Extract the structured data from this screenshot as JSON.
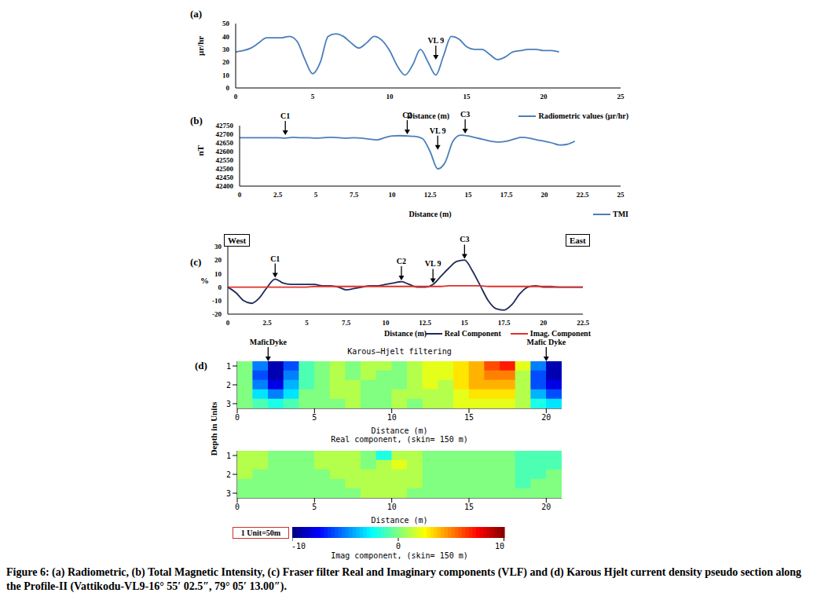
{
  "chart_data": [
    {
      "type": "line",
      "panel": "(a)",
      "xlabel": "Distance (m)",
      "ylabel": "μr/hr",
      "legend": "lower right",
      "xlim": [
        0,
        25
      ],
      "xticks": [
        0,
        5,
        10,
        15,
        20,
        25
      ],
      "ylim": [
        0,
        50
      ],
      "yticks": [
        0,
        10,
        20,
        30,
        40,
        50
      ],
      "x": [
        0,
        0.5,
        1,
        1.5,
        2,
        2.5,
        3,
        3.5,
        4,
        4.5,
        5,
        5.5,
        6,
        6.5,
        7,
        7.5,
        8,
        8.5,
        9,
        9.5,
        10,
        10.5,
        11,
        11.5,
        12,
        12.5,
        13,
        13.5,
        14,
        14.5,
        15,
        15.5,
        16,
        16.5,
        17,
        17.5,
        18,
        18.5,
        19,
        19.5,
        20,
        20.5,
        21
      ],
      "series": [
        {
          "name": "Radiometric values (μr/hr)",
          "color": "#4a7ebb",
          "values": [
            28,
            29,
            31,
            35,
            39,
            39,
            39,
            40,
            36,
            22,
            11,
            20,
            40,
            42,
            40,
            35,
            31,
            35,
            40,
            37,
            29,
            17,
            10,
            18,
            30,
            20,
            10,
            25,
            40,
            38,
            32,
            30,
            30,
            26,
            22,
            24,
            28,
            29,
            30,
            30,
            29,
            29,
            28
          ]
        }
      ],
      "annotations": [
        {
          "text": "VL 9",
          "x": 13,
          "y": 22
        }
      ]
    },
    {
      "type": "line",
      "panel": "(b)",
      "xlabel": "Distance (m)",
      "ylabel": "nT",
      "legend": "lower right",
      "xlim": [
        0,
        25
      ],
      "xticks": [
        0,
        2.5,
        5,
        7.5,
        10,
        12.5,
        15,
        17.5,
        20,
        22.5,
        25
      ],
      "ylim": [
        42400,
        42750
      ],
      "yticks": [
        42400,
        42450,
        42500,
        42550,
        42600,
        42650,
        42700,
        42750
      ],
      "x": [
        0,
        0.5,
        1,
        1.5,
        2,
        2.5,
        3,
        3.5,
        4,
        4.5,
        5,
        5.5,
        6,
        6.5,
        7,
        7.5,
        8,
        8.5,
        9,
        9.5,
        10,
        10.5,
        11,
        11.5,
        12,
        12.5,
        13,
        13.5,
        14,
        14.5,
        15,
        15.5,
        16,
        16.5,
        17,
        17.5,
        18,
        18.5,
        19,
        19.5,
        20,
        20.5,
        21,
        21.5,
        22
      ],
      "series": [
        {
          "name": "TMI",
          "color": "#4a7ebb",
          "values": [
            42680,
            42680,
            42680,
            42680,
            42680,
            42680,
            42678,
            42682,
            42680,
            42680,
            42678,
            42680,
            42682,
            42680,
            42678,
            42680,
            42678,
            42672,
            42668,
            42680,
            42690,
            42692,
            42690,
            42688,
            42675,
            42600,
            42500,
            42540,
            42660,
            42695,
            42690,
            42680,
            42670,
            42660,
            42655,
            42660,
            42672,
            42682,
            42678,
            42668,
            42660,
            42650,
            42638,
            42642,
            42660
          ]
        }
      ],
      "annotations": [
        {
          "text": "C1",
          "x": 3,
          "y": 42695
        },
        {
          "text": "C2",
          "x": 11,
          "y": 42700
        },
        {
          "text": "VL 9",
          "x": 13,
          "y": 42610
        },
        {
          "text": "C3",
          "x": 14.8,
          "y": 42705
        }
      ]
    },
    {
      "type": "line",
      "panel": "(c)",
      "xlabel": "Distance (m)",
      "ylabel": "%",
      "legend": "lower right",
      "direction_labels": [
        "West",
        "East"
      ],
      "xlim": [
        0,
        22.5
      ],
      "xticks": [
        0,
        2.5,
        5,
        7.5,
        10,
        12.5,
        15,
        17.5,
        20,
        22.5
      ],
      "ylim": [
        -20,
        30
      ],
      "yticks": [
        -20,
        -10,
        0,
        10,
        20,
        30
      ],
      "x": [
        0,
        0.5,
        1,
        1.5,
        2,
        2.5,
        3,
        3.5,
        4,
        4.5,
        5,
        5.5,
        6,
        6.5,
        7,
        7.5,
        8,
        8.5,
        9,
        9.5,
        10,
        10.5,
        11,
        11.5,
        12,
        12.5,
        13,
        13.5,
        14,
        14.5,
        15,
        15.5,
        16,
        16.5,
        17,
        17.5,
        18,
        18.5,
        19,
        19.5,
        20,
        20.5,
        21,
        21.5,
        22,
        22.5
      ],
      "series": [
        {
          "name": "Real Component",
          "color": "#1f2a5a",
          "values": [
            0,
            -4,
            -10,
            -12,
            -8,
            0,
            6,
            3,
            2,
            2,
            2,
            2,
            1,
            1,
            0,
            -2,
            -1,
            0,
            1,
            1,
            2,
            3,
            4,
            2,
            0,
            0,
            2,
            8,
            14,
            19,
            20,
            12,
            1,
            -10,
            -16,
            -17,
            -13,
            -5,
            0,
            1,
            0,
            0,
            0,
            0,
            0,
            0
          ]
        },
        {
          "name": "Imag. Component",
          "color": "#e0302a",
          "values": [
            0,
            0,
            0,
            0,
            0,
            0,
            0,
            0,
            0,
            0,
            0,
            0.5,
            0.5,
            0.5,
            0.5,
            0.5,
            0.5,
            0.5,
            0.5,
            0.5,
            0.5,
            0.5,
            0.5,
            0.5,
            0.5,
            0.5,
            0.5,
            0.5,
            1,
            1,
            1,
            1,
            1,
            0.5,
            0.5,
            0.5,
            0.5,
            0.5,
            0.5,
            0.5,
            0.5,
            0.5,
            0,
            0,
            0,
            0
          ]
        }
      ],
      "annotations": [
        {
          "text": "C1",
          "x": 3,
          "y": 7
        },
        {
          "text": "C2",
          "x": 11,
          "y": 5
        },
        {
          "text": "VL 9",
          "x": 13,
          "y": 3
        },
        {
          "text": "C3",
          "x": 15,
          "y": 21
        }
      ]
    },
    {
      "type": "heatmap",
      "panel": "(d)",
      "title": "Karous–Hjelt filtering",
      "ylabel": "Depth in Units",
      "xlabel": "Distance (m)",
      "subtitle": "Real component, (skin= 150 m)",
      "xlim": [
        0,
        21
      ],
      "xticks": [
        0,
        5,
        10,
        15,
        20
      ],
      "ylim": [
        0.75,
        3.25
      ],
      "yticks": [
        1,
        2,
        3
      ],
      "x": [
        0.5,
        1.5,
        2.5,
        3.5,
        4.5,
        5.5,
        6.5,
        7.5,
        8.5,
        9.5,
        10.5,
        11.5,
        12.5,
        13.5,
        14.5,
        15.5,
        16.5,
        17.5,
        18.5,
        19.5,
        20.5
      ],
      "y": [
        1,
        1.5,
        2,
        2.5,
        3
      ],
      "cells": [
        [
          0,
          -5,
          -9,
          -6,
          -1,
          0,
          1,
          0,
          1,
          1,
          0,
          1,
          2,
          2,
          3,
          4,
          6,
          7,
          2,
          -5,
          -9
        ],
        [
          0,
          -6,
          -9,
          -5,
          -1,
          0,
          1,
          0,
          1,
          0,
          0,
          1,
          2,
          2,
          3,
          4,
          5,
          5,
          1,
          -6,
          -9
        ],
        [
          0,
          -5,
          -8,
          -4,
          -1,
          0,
          1,
          1,
          0,
          0,
          0,
          1,
          2,
          1,
          3,
          4,
          4,
          4,
          1,
          -6,
          -8
        ],
        [
          0,
          -3,
          -5,
          -3,
          0,
          0,
          1,
          1,
          0,
          0,
          1,
          1,
          1,
          1,
          2,
          3,
          3,
          3,
          1,
          -4,
          -6
        ],
        [
          0,
          -1,
          -2,
          -1,
          0,
          0,
          0,
          1,
          0,
          0,
          1,
          0,
          1,
          1,
          2,
          2,
          2,
          2,
          1,
          -2,
          -3
        ]
      ],
      "annotations": [
        {
          "text": "MaficDyke",
          "x": 2,
          "y": 0.75
        },
        {
          "text": "Mafic Dyke",
          "x": 20,
          "y": 0.75
        }
      ]
    },
    {
      "type": "heatmap",
      "xlabel": "Distance (m)",
      "subtitle": "Imag component, (skin= 150 m)",
      "xlim": [
        0,
        21
      ],
      "xticks": [
        0,
        5,
        10,
        15,
        20
      ],
      "ylim": [
        0.75,
        3.25
      ],
      "yticks": [
        1,
        2,
        3
      ],
      "x": [
        0.5,
        1.5,
        2.5,
        3.5,
        4.5,
        5.5,
        6.5,
        7.5,
        8.5,
        9.5,
        10.5,
        11.5,
        12.5,
        13.5,
        14.5,
        15.5,
        16.5,
        17.5,
        18.5,
        19.5,
        20.5
      ],
      "y": [
        1,
        1.5,
        2,
        2.5,
        3
      ],
      "cells": [
        [
          1,
          1,
          0,
          0,
          0,
          1,
          1,
          1,
          0,
          -2,
          1,
          1,
          0,
          0,
          0,
          0,
          0,
          0,
          -1,
          -1,
          -1
        ],
        [
          1,
          1,
          0,
          0,
          0,
          1,
          1,
          1,
          0,
          1,
          2,
          1,
          0,
          0,
          0,
          0,
          0,
          0,
          -1,
          -1,
          -1
        ],
        [
          1,
          0,
          0,
          0,
          0,
          0,
          1,
          1,
          1,
          1,
          1,
          1,
          0,
          0,
          0,
          0,
          0,
          0,
          -1,
          -1,
          0
        ],
        [
          0,
          0,
          0,
          0,
          0,
          0,
          0,
          1,
          1,
          1,
          1,
          1,
          0,
          0,
          0,
          0,
          0,
          0,
          -1,
          0,
          0
        ],
        [
          0,
          0,
          0,
          0,
          0,
          0,
          0,
          0,
          1,
          1,
          1,
          0,
          0,
          0,
          0,
          0,
          0,
          0,
          0,
          0,
          0
        ]
      ],
      "colorbar": {
        "range": [
          -10,
          10
        ],
        "ticks": [
          -10,
          0,
          10
        ]
      },
      "scale_label": "1 Unit=50m"
    }
  ],
  "caption": "Figure 6: (a) Radiometric, (b) Total Magnetic Intensity, (c) Fraser filter Real and Imaginary components (VLF) and (d) Karous Hjelt current density pseudo section along the Profile-II (Vattikodu-VL9-16° 55′ 02.5″, 79° 05′ 13.00″)."
}
